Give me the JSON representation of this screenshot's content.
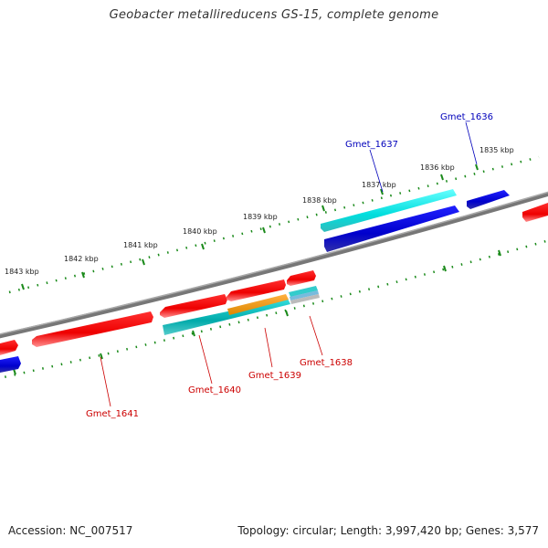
{
  "header": {
    "title": "Geobacter metallireducens GS-15, complete genome"
  },
  "footer": {
    "accession": "Accession: NC_007517",
    "info": "Topology: circular; Length: 3,997,420 bp; Genes: 3,577"
  },
  "scale": {
    "ticks": [
      "1835 kbp",
      "1836 kbp",
      "1837 kbp",
      "1838 kbp",
      "1839 kbp",
      "1840 kbp",
      "1841 kbp",
      "1842 kbp",
      "1843 kbp"
    ]
  },
  "genes": {
    "forward_color": "#0000dd",
    "reverse_color": "#dd0000",
    "labels": [
      {
        "name": "Gmet_1636",
        "strand": "forward"
      },
      {
        "name": "Gmet_1637",
        "strand": "forward"
      },
      {
        "name": "Gmet_1638",
        "strand": "reverse"
      },
      {
        "name": "Gmet_1639",
        "strand": "reverse"
      },
      {
        "name": "Gmet_1640",
        "strand": "reverse"
      },
      {
        "name": "Gmet_1641",
        "strand": "reverse"
      }
    ]
  }
}
